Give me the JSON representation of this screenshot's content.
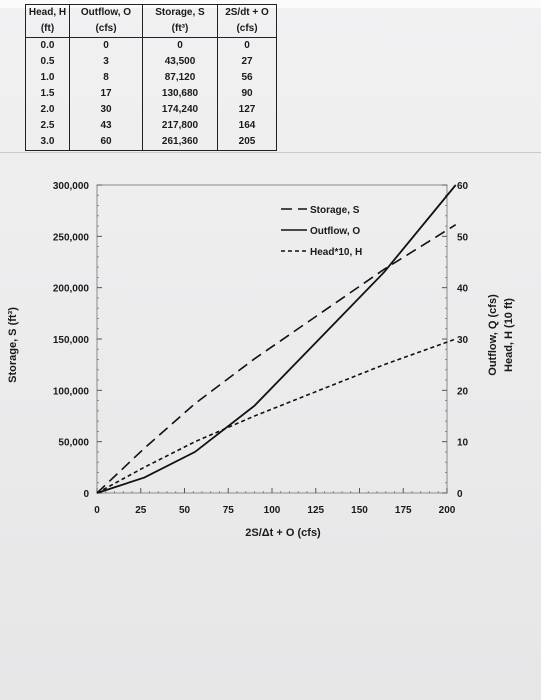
{
  "table": {
    "headers": [
      "Head, H",
      "Outflow, O",
      "Storage, S",
      "2S/dt + O"
    ],
    "units": [
      "(ft)",
      "(cfs)",
      "(ft³)",
      "(cfs)"
    ],
    "rows": [
      [
        "0.0",
        "0",
        "0",
        "0"
      ],
      [
        "0.5",
        "3",
        "43,500",
        "27"
      ],
      [
        "1.0",
        "8",
        "87,120",
        "56"
      ],
      [
        "1.5",
        "17",
        "130,680",
        "90"
      ],
      [
        "2.0",
        "30",
        "174,240",
        "127"
      ],
      [
        "2.5",
        "43",
        "217,800",
        "164"
      ],
      [
        "3.0",
        "60",
        "261,360",
        "205"
      ]
    ]
  },
  "chart_data": {
    "type": "line",
    "xlabel": "2S/Δt + O (cfs)",
    "ylabel_left": "Storage, S (ft³)",
    "ylabel_right_1": "Outflow, Q (cfs)",
    "ylabel_right_2": "Head, H (10 ft)",
    "xlim": [
      0,
      200
    ],
    "ylim_left": [
      0,
      300000
    ],
    "ylim_right": [
      0,
      60
    ],
    "x_ticks": [
      "0",
      "25",
      "50",
      "75",
      "100",
      "125",
      "150",
      "175",
      "200"
    ],
    "y_left_ticks": [
      "0",
      "50,000",
      "100,000",
      "150,000",
      "200,000",
      "250,000",
      "300,000"
    ],
    "y_right_ticks": [
      "0",
      "10",
      "20",
      "30",
      "40",
      "50",
      "60"
    ],
    "grid": false,
    "legend_position": "top-right",
    "series": [
      {
        "name": "Storage, S",
        "axis": "left",
        "dash": "long",
        "x": [
          0,
          27,
          56,
          90,
          127,
          164,
          205
        ],
        "values": [
          0,
          43500,
          87120,
          130680,
          174240,
          217800,
          261360
        ]
      },
      {
        "name": "Outflow, O",
        "axis": "right",
        "dash": "solid",
        "x": [
          0,
          27,
          56,
          90,
          127,
          164,
          205
        ],
        "values": [
          0,
          3,
          8,
          17,
          30,
          43,
          60
        ]
      },
      {
        "name": "Head*10, H",
        "axis": "right",
        "dash": "short",
        "x": [
          0,
          27,
          56,
          90,
          127,
          164,
          205
        ],
        "values": [
          0,
          5,
          10,
          15,
          20,
          25,
          30
        ]
      }
    ]
  }
}
